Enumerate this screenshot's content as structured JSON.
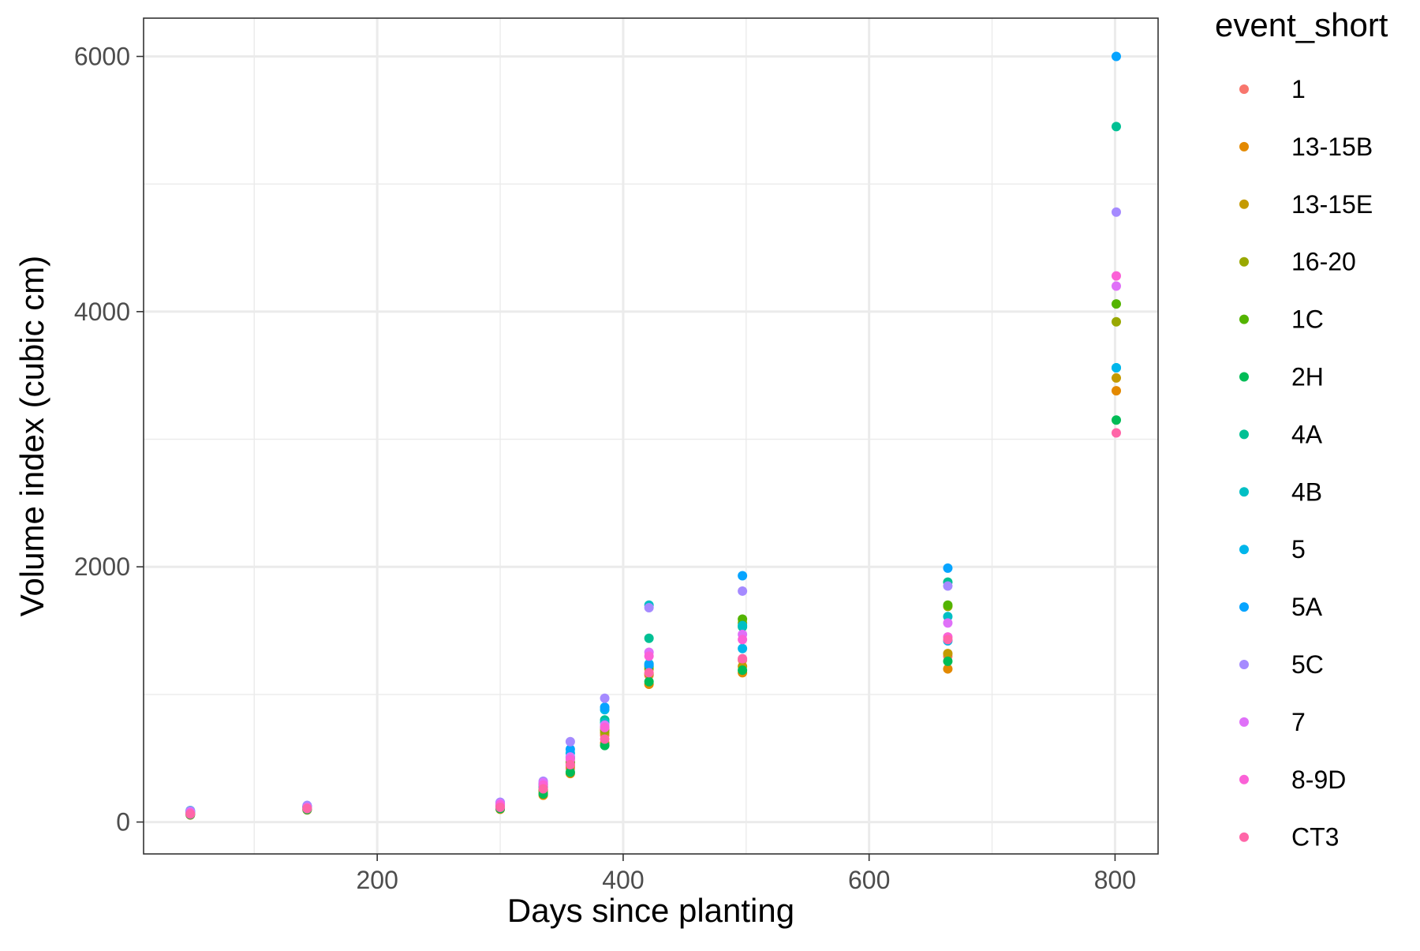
{
  "chart_data": {
    "type": "scatter",
    "title": "",
    "xlabel": "Days since planting",
    "ylabel": "Volume index (cubic cm)",
    "xlim": [
      10,
      835
    ],
    "ylim": [
      -250,
      6300
    ],
    "x_ticks": [
      200,
      400,
      600,
      800
    ],
    "y_ticks": [
      0,
      2000,
      4000,
      6000
    ],
    "grid": true,
    "theme": "bw",
    "legend": {
      "title": "event_short",
      "position": "right"
    },
    "series": [
      {
        "name": "1",
        "color": "#F8766D",
        "points": [
          [
            48,
            60
          ],
          [
            143,
            100
          ],
          [
            300,
            110
          ],
          [
            335,
            230
          ],
          [
            357,
            420
          ],
          [
            385,
            680
          ],
          [
            421,
            1150
          ],
          [
            497,
            1270
          ],
          [
            664,
            1300
          ]
        ]
      },
      {
        "name": "13-15B",
        "color": "#E38900",
        "points": [
          [
            48,
            55
          ],
          [
            143,
            95
          ],
          [
            300,
            100
          ],
          [
            335,
            210
          ],
          [
            357,
            380
          ],
          [
            385,
            620
          ],
          [
            421,
            1080
          ],
          [
            497,
            1170
          ],
          [
            664,
            1200
          ],
          [
            801,
            3380
          ]
        ]
      },
      {
        "name": "13-15E",
        "color": "#C49A00",
        "points": [
          [
            48,
            65
          ],
          [
            143,
            100
          ],
          [
            300,
            120
          ],
          [
            335,
            240
          ],
          [
            357,
            440
          ],
          [
            385,
            700
          ],
          [
            421,
            1160
          ],
          [
            497,
            1220
          ],
          [
            664,
            1320
          ],
          [
            801,
            3480
          ]
        ]
      },
      {
        "name": "16-20",
        "color": "#99A800",
        "points": [
          [
            48,
            70
          ],
          [
            143,
            110
          ],
          [
            300,
            125
          ],
          [
            335,
            250
          ],
          [
            357,
            460
          ],
          [
            385,
            720
          ],
          [
            421,
            1200
          ],
          [
            497,
            1560
          ],
          [
            664,
            1690
          ],
          [
            801,
            3920
          ]
        ]
      },
      {
        "name": "1C",
        "color": "#53B400",
        "points": [
          [
            48,
            72
          ],
          [
            143,
            115
          ],
          [
            300,
            130
          ],
          [
            335,
            255
          ],
          [
            357,
            470
          ],
          [
            385,
            740
          ],
          [
            421,
            1220
          ],
          [
            497,
            1590
          ],
          [
            664,
            1700
          ],
          [
            801,
            4060
          ]
        ]
      },
      {
        "name": "2H",
        "color": "#00BC56",
        "points": [
          [
            48,
            58
          ],
          [
            143,
            98
          ],
          [
            300,
            105
          ],
          [
            335,
            220
          ],
          [
            357,
            390
          ],
          [
            385,
            600
          ],
          [
            421,
            1100
          ],
          [
            497,
            1190
          ],
          [
            664,
            1260
          ],
          [
            801,
            3150
          ]
        ]
      },
      {
        "name": "4A",
        "color": "#00C094",
        "points": [
          [
            48,
            80
          ],
          [
            143,
            120
          ],
          [
            300,
            140
          ],
          [
            335,
            270
          ],
          [
            357,
            500
          ],
          [
            385,
            800
          ],
          [
            421,
            1440
          ],
          [
            497,
            1530
          ],
          [
            664,
            1880
          ],
          [
            801,
            5450
          ]
        ]
      },
      {
        "name": "4B",
        "color": "#00BFC4",
        "points": [
          [
            48,
            90
          ],
          [
            143,
            125
          ],
          [
            300,
            145
          ],
          [
            335,
            280
          ],
          [
            357,
            510
          ],
          [
            385,
            780
          ],
          [
            421,
            1700
          ],
          [
            497,
            1540
          ],
          [
            664,
            1610
          ],
          [
            801,
            3560
          ]
        ]
      },
      {
        "name": "5",
        "color": "#00B6EB",
        "points": [
          [
            48,
            75
          ],
          [
            143,
            118
          ],
          [
            300,
            135
          ],
          [
            335,
            290
          ],
          [
            357,
            540
          ],
          [
            385,
            880
          ],
          [
            421,
            1240
          ],
          [
            497,
            1360
          ],
          [
            664,
            1420
          ],
          [
            801,
            3560
          ]
        ]
      },
      {
        "name": "5A",
        "color": "#06A4FF",
        "points": [
          [
            48,
            85
          ],
          [
            143,
            122
          ],
          [
            300,
            150
          ],
          [
            335,
            300
          ],
          [
            357,
            570
          ],
          [
            385,
            900
          ],
          [
            421,
            1230
          ],
          [
            497,
            1930
          ],
          [
            664,
            1990
          ],
          [
            801,
            6000
          ]
        ]
      },
      {
        "name": "5C",
        "color": "#A58AFF",
        "points": [
          [
            48,
            88
          ],
          [
            143,
            130
          ],
          [
            300,
            155
          ],
          [
            335,
            320
          ],
          [
            357,
            630
          ],
          [
            385,
            970
          ],
          [
            421,
            1680
          ],
          [
            497,
            1810
          ],
          [
            664,
            1850
          ],
          [
            801,
            4780
          ]
        ]
      },
      {
        "name": "7",
        "color": "#DF70F8",
        "points": [
          [
            48,
            78
          ],
          [
            143,
            115
          ],
          [
            300,
            145
          ],
          [
            335,
            310
          ],
          [
            357,
            510
          ],
          [
            385,
            760
          ],
          [
            421,
            1330
          ],
          [
            497,
            1470
          ],
          [
            664,
            1560
          ],
          [
            801,
            4200
          ]
        ]
      },
      {
        "name": "8-9D",
        "color": "#FB61D7",
        "points": [
          [
            48,
            70
          ],
          [
            143,
            112
          ],
          [
            300,
            135
          ],
          [
            335,
            290
          ],
          [
            357,
            490
          ],
          [
            385,
            740
          ],
          [
            421,
            1300
          ],
          [
            497,
            1430
          ],
          [
            664,
            1450
          ],
          [
            801,
            4280
          ]
        ]
      },
      {
        "name": "CT3",
        "color": "#FF66A8",
        "points": [
          [
            48,
            62
          ],
          [
            143,
            105
          ],
          [
            300,
            115
          ],
          [
            335,
            260
          ],
          [
            357,
            450
          ],
          [
            385,
            650
          ],
          [
            421,
            1170
          ],
          [
            497,
            1280
          ],
          [
            664,
            1430
          ],
          [
            801,
            3050
          ]
        ]
      }
    ]
  }
}
